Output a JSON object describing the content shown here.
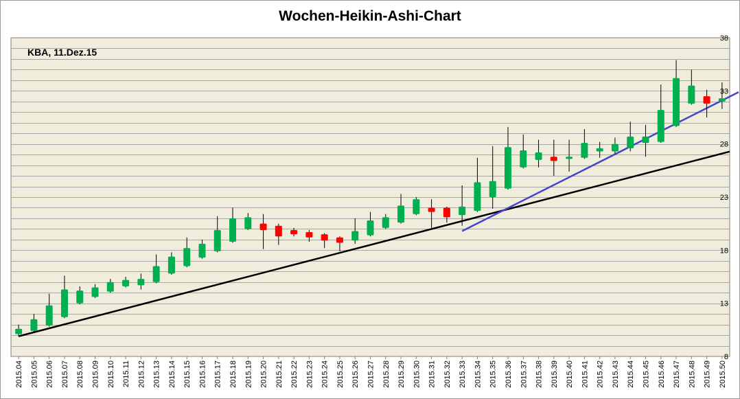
{
  "chart_data": {
    "type": "candlestick",
    "title": "Wochen-Heikin-Ashi-Chart",
    "annotation": "KBA, 11.Dez.15",
    "xlabel": "",
    "ylabel": "",
    "ylim": [
      8,
      38
    ],
    "y_ticks": [
      "8",
      "13",
      "18",
      "23",
      "28",
      "33",
      "38"
    ],
    "grid": true,
    "colors": {
      "up": "#00b050",
      "down": "#ff0000",
      "background": "#f0eddc",
      "trend_black": "#000000",
      "trend_blue": "#4444cc"
    },
    "x": [
      "2015.04",
      "2015.05",
      "2015.06",
      "2015.07",
      "2015.08",
      "2015.09",
      "2015.10",
      "2015.11",
      "2015.12",
      "2015.13",
      "2015.14",
      "2015.15",
      "2015.16",
      "2015.17",
      "2015.18",
      "2015.19",
      "2015.20",
      "2015.21",
      "2015.22",
      "2015.23",
      "2015.24",
      "2015.25",
      "2015.26",
      "2015.27",
      "2015.28",
      "2015.29",
      "2015.30",
      "2015.31",
      "2015.32",
      "2015.33",
      "2015.34",
      "2015.35",
      "2015.36",
      "2015.37",
      "2015.38",
      "2015.39",
      "2015.40",
      "2015.41",
      "2015.42",
      "2015.43",
      "2015.44",
      "2015.45",
      "2015.46",
      "2015.47",
      "2015.48",
      "2015.49",
      "2015.50"
    ],
    "candles": [
      {
        "open": 10.1,
        "close": 10.6,
        "high": 11.0,
        "low": 9.9
      },
      {
        "open": 10.4,
        "close": 11.5,
        "high": 12.0,
        "low": 10.3
      },
      {
        "open": 10.9,
        "close": 12.8,
        "high": 13.9,
        "low": 10.8
      },
      {
        "open": 11.7,
        "close": 14.3,
        "high": 15.6,
        "low": 11.6
      },
      {
        "open": 13.0,
        "close": 14.2,
        "high": 14.6,
        "low": 12.9
      },
      {
        "open": 13.6,
        "close": 14.5,
        "high": 14.8,
        "low": 13.5
      },
      {
        "open": 14.1,
        "close": 15.0,
        "high": 15.3,
        "low": 14.0
      },
      {
        "open": 14.6,
        "close": 15.2,
        "high": 15.5,
        "low": 14.5
      },
      {
        "open": 14.7,
        "close": 15.3,
        "high": 15.8,
        "low": 14.3
      },
      {
        "open": 15.0,
        "close": 16.5,
        "high": 17.6,
        "low": 14.9
      },
      {
        "open": 15.8,
        "close": 17.4,
        "high": 17.8,
        "low": 15.7
      },
      {
        "open": 16.5,
        "close": 18.2,
        "high": 19.2,
        "low": 16.4
      },
      {
        "open": 17.3,
        "close": 18.6,
        "high": 19.0,
        "low": 17.2
      },
      {
        "open": 17.9,
        "close": 19.9,
        "high": 21.2,
        "low": 17.8
      },
      {
        "open": 18.8,
        "close": 21.0,
        "high": 22.0,
        "low": 18.7
      },
      {
        "open": 20.0,
        "close": 21.1,
        "high": 21.5,
        "low": 19.9
      },
      {
        "open": 20.5,
        "close": 19.9,
        "high": 21.4,
        "low": 18.1
      },
      {
        "open": 20.3,
        "close": 19.3,
        "high": 20.5,
        "low": 18.5
      },
      {
        "open": 19.9,
        "close": 19.5,
        "high": 20.1,
        "low": 19.3
      },
      {
        "open": 19.7,
        "close": 19.2,
        "high": 19.9,
        "low": 18.8
      },
      {
        "open": 19.5,
        "close": 18.9,
        "high": 19.6,
        "low": 18.2
      },
      {
        "open": 19.2,
        "close": 18.7,
        "high": 19.3,
        "low": 17.9
      },
      {
        "open": 18.9,
        "close": 19.8,
        "high": 21.0,
        "low": 18.6
      },
      {
        "open": 19.4,
        "close": 20.8,
        "high": 21.6,
        "low": 19.3
      },
      {
        "open": 20.1,
        "close": 21.1,
        "high": 21.4,
        "low": 20.0
      },
      {
        "open": 20.6,
        "close": 22.2,
        "high": 23.3,
        "low": 20.5
      },
      {
        "open": 21.4,
        "close": 22.8,
        "high": 23.0,
        "low": 21.3
      },
      {
        "open": 22.0,
        "close": 21.6,
        "high": 22.8,
        "low": 20.1
      },
      {
        "open": 22.0,
        "close": 21.1,
        "high": 22.1,
        "low": 20.6
      },
      {
        "open": 21.3,
        "close": 22.1,
        "high": 24.1,
        "low": 20.3
      },
      {
        "open": 21.7,
        "close": 24.4,
        "high": 26.7,
        "low": 21.6
      },
      {
        "open": 23.0,
        "close": 24.5,
        "high": 27.8,
        "low": 21.9
      },
      {
        "open": 23.8,
        "close": 27.7,
        "high": 29.6,
        "low": 23.7
      },
      {
        "open": 25.8,
        "close": 27.4,
        "high": 28.9,
        "low": 25.7
      },
      {
        "open": 26.5,
        "close": 27.2,
        "high": 28.4,
        "low": 25.8
      },
      {
        "open": 26.8,
        "close": 26.4,
        "high": 28.4,
        "low": 25.0
      },
      {
        "open": 26.6,
        "close": 26.8,
        "high": 28.4,
        "low": 25.4
      },
      {
        "open": 26.7,
        "close": 28.1,
        "high": 29.4,
        "low": 26.6
      },
      {
        "open": 27.3,
        "close": 27.6,
        "high": 28.2,
        "low": 26.7
      },
      {
        "open": 27.3,
        "close": 28.0,
        "high": 28.6,
        "low": 27.1
      },
      {
        "open": 27.6,
        "close": 28.7,
        "high": 30.1,
        "low": 27.3
      },
      {
        "open": 28.1,
        "close": 28.7,
        "high": 29.8,
        "low": 26.8
      },
      {
        "open": 28.2,
        "close": 31.2,
        "high": 33.6,
        "low": 28.1
      },
      {
        "open": 29.7,
        "close": 34.2,
        "high": 35.9,
        "low": 29.6
      },
      {
        "open": 31.8,
        "close": 33.5,
        "high": 35.0,
        "low": 31.7
      },
      {
        "open": 32.5,
        "close": 31.8,
        "high": 33.1,
        "low": 30.5
      },
      {
        "open": 32.0,
        "close": 32.3,
        "high": 33.8,
        "low": 31.3
      }
    ],
    "trendlines": [
      {
        "color": "black",
        "from": {
          "x": "2015.04",
          "y": 9.9
        },
        "to": {
          "x": "2015.50",
          "y": 27.1
        }
      },
      {
        "color": "blue",
        "from": {
          "x": "2015.33",
          "y": 19.8
        },
        "to": {
          "x": "2015.50",
          "y": 32.1
        }
      }
    ]
  }
}
